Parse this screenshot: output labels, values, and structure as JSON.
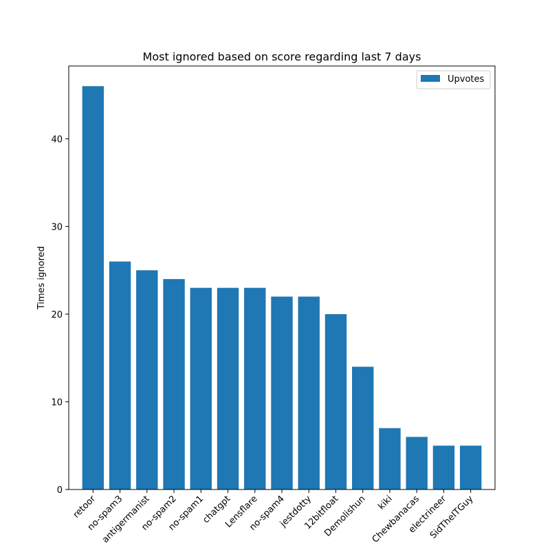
{
  "chart_data": {
    "type": "bar",
    "title": "Most ignored based on score regarding last 7 days",
    "xlabel": "",
    "ylabel": "Times ignored",
    "categories": [
      "retoor",
      "no-spam3",
      "antigermanist",
      "no-spam2",
      "no-spam1",
      "chatgpt",
      "Lensflare",
      "no-spam4",
      "jestdotty",
      "12bitfloat",
      "Demolishun",
      "kiki",
      "Chewbanacas",
      "electrineer",
      "SidTheITGuy"
    ],
    "series": [
      {
        "name": "Upvotes",
        "values": [
          46,
          26,
          25,
          24,
          23,
          23,
          23,
          22,
          22,
          20,
          14,
          7,
          6,
          5,
          5
        ],
        "color": "#1f77b4"
      }
    ],
    "ylim": [
      0,
      48.3
    ],
    "yticks": [
      0,
      10,
      20,
      30,
      40
    ],
    "grid": false,
    "legend_position": "top-right",
    "x_tick_rotation": "45 degrees"
  }
}
